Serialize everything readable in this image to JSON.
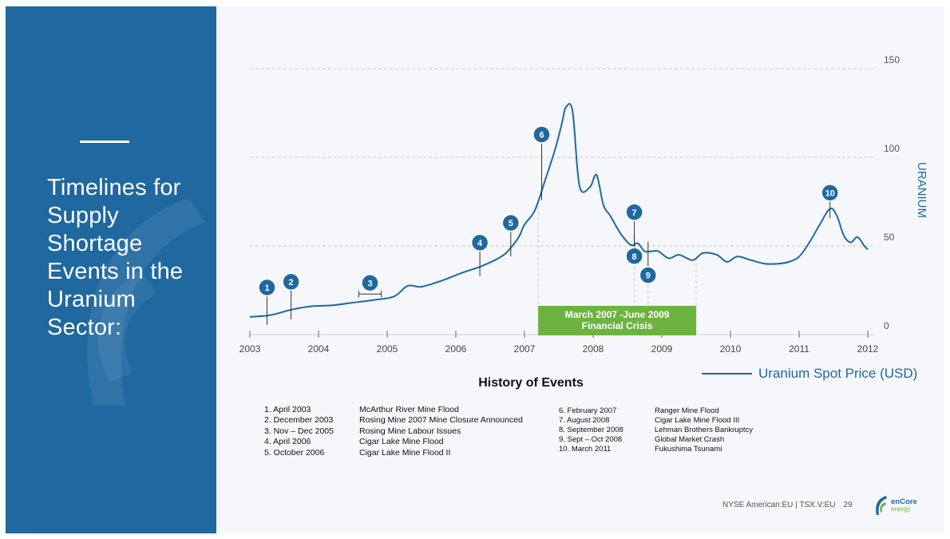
{
  "slide": {
    "title": "Timelines for Supply Shortage Events in the Uranium Sector:",
    "footer_exchange": "NYSE American:EU | TSX.V:EU",
    "page_number": "29",
    "logo_line1": "enCore",
    "logo_line2": "energy"
  },
  "events": {
    "title": "History of Events",
    "left": [
      {
        "date": "1. April 2003",
        "name": "McArthur River Mine Flood"
      },
      {
        "date": "2. December 2003",
        "name": "Rosing Mine 2007 Mine Closure Announced"
      },
      {
        "date": "3. Nov    – Dec 2005",
        "name": "Rosing Mine Labour Issues"
      },
      {
        "date": "4. April 2006",
        "name": "Cigar Lake Mine Flood"
      },
      {
        "date": "5. October 2006",
        "name": "Cigar Lake Mine Flood II"
      }
    ],
    "right": [
      {
        "date": "6. February 2007",
        "name": "Ranger Mine Flood"
      },
      {
        "date": "7. August 2008",
        "name": "Cigar Lake Mine Flood III"
      },
      {
        "date": "8.   September 2008",
        "name": "Lehman Brothers Bankruptcy"
      },
      {
        "date": "9.   Sept – Oct 2008",
        "name": "Global Market Crash"
      },
      {
        "date": "10. March 2011",
        "name": "Fukushima Tsunami"
      }
    ]
  },
  "chart_data": {
    "type": "line",
    "ylabel": "URANIUM",
    "ylim": [
      0,
      150
    ],
    "yticks": [
      0,
      50,
      100,
      150
    ],
    "xlim": [
      2003,
      2012
    ],
    "xticks": [
      "2003",
      "2004",
      "2005",
      "2006",
      "2007",
      "2008",
      "2009",
      "2010",
      "2011",
      "2012"
    ],
    "grid": true,
    "legend_position": "bottom-right",
    "series": [
      {
        "name": "Uranium Spot Price (USD)",
        "color": "#1f68a0",
        "x": [
          2003.0,
          2003.3,
          2003.6,
          2003.9,
          2004.2,
          2004.5,
          2004.8,
          2005.1,
          2005.3,
          2005.5,
          2005.8,
          2006.1,
          2006.4,
          2006.7,
          2006.9,
          2007.0,
          2007.15,
          2007.3,
          2007.45,
          2007.55,
          2007.6,
          2007.7,
          2007.8,
          2007.95,
          2008.05,
          2008.15,
          2008.25,
          2008.4,
          2008.55,
          2008.65,
          2008.75,
          2008.85,
          2008.95,
          2009.1,
          2009.25,
          2009.45,
          2009.6,
          2009.8,
          2009.95,
          2010.1,
          2010.3,
          2010.5,
          2010.7,
          2010.85,
          2011.0,
          2011.15,
          2011.3,
          2011.45,
          2011.55,
          2011.65,
          2011.75,
          2011.85,
          2011.95,
          2012.0
        ],
        "y": [
          10,
          11,
          14,
          16,
          16.5,
          18,
          19.5,
          21.5,
          27.5,
          27,
          30.5,
          35,
          39,
          45,
          54,
          62,
          70,
          87,
          105,
          120,
          128,
          126,
          84,
          83,
          90,
          73,
          67,
          57,
          50.5,
          51.5,
          47,
          47,
          47,
          43,
          45,
          42,
          46,
          45,
          41,
          44,
          42,
          40,
          40,
          41,
          44,
          52,
          62,
          71,
          67,
          56,
          52,
          55,
          50,
          48
        ]
      }
    ],
    "markers": [
      {
        "label": "1",
        "x": 2003.25
      },
      {
        "label": "2",
        "x": 2003.6
      },
      {
        "label": "3",
        "x": 2004.75
      },
      {
        "label": "4",
        "x": 2006.35
      },
      {
        "label": "5",
        "x": 2006.8
      },
      {
        "label": "6",
        "x": 2007.25
      },
      {
        "label": "7",
        "x": 2008.6
      },
      {
        "label": "8",
        "x": 2008.6
      },
      {
        "label": "9",
        "x": 2008.8
      },
      {
        "label": "10",
        "x": 2011.45
      }
    ],
    "annotations": [
      {
        "text": "March 2007 -June 2009",
        "subtext": "Financial Crisis",
        "x_start": 2007.2,
        "x_end": 2009.5,
        "color": "#6cb33f"
      }
    ]
  }
}
